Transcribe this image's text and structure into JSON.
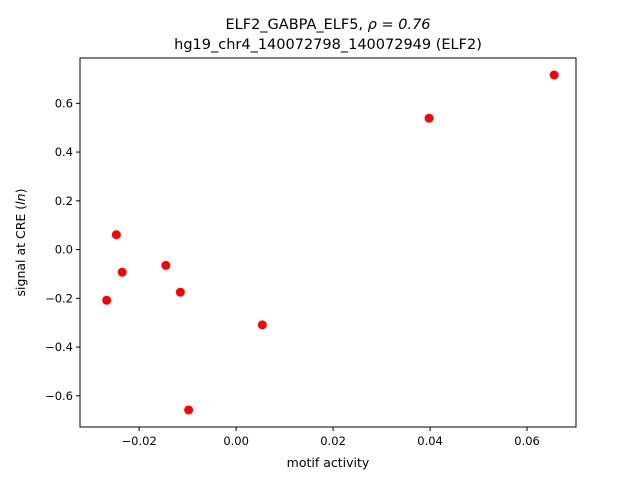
{
  "chart_data": {
    "type": "scatter",
    "title_main": "ELF2_GABPA_ELF5, ",
    "title_rho": "ρ = 0.76",
    "subtitle": "hg19_chr4_140072798_140072949 (ELF2)",
    "xlabel": "motif activity",
    "ylabel_prefix": "signal at CRE (",
    "ylabel_italic": "ln",
    "ylabel_suffix": ")",
    "xlim": [
      -0.0322,
      0.0701
    ],
    "ylim": [
      -0.728,
      0.786
    ],
    "xticks": [
      -0.02,
      0.0,
      0.02,
      0.04,
      0.06
    ],
    "xtick_labels": [
      "−0.02",
      "0.00",
      "0.02",
      "0.04",
      "0.06"
    ],
    "yticks": [
      -0.6,
      -0.4,
      -0.2,
      0.0,
      0.2,
      0.4,
      0.6
    ],
    "ytick_labels": [
      "−0.6",
      "−0.4",
      "−0.2",
      "0.0",
      "0.2",
      "0.4",
      "0.6"
    ],
    "grid": false,
    "point_color": "#ff0000",
    "points": [
      {
        "x": 0.0656,
        "y": 0.716
      },
      {
        "x": 0.0398,
        "y": 0.539
      },
      {
        "x": -0.0247,
        "y": 0.061
      },
      {
        "x": -0.0235,
        "y": -0.093
      },
      {
        "x": -0.0145,
        "y": -0.065
      },
      {
        "x": -0.0267,
        "y": -0.208
      },
      {
        "x": -0.0115,
        "y": -0.175
      },
      {
        "x": 0.0054,
        "y": -0.309
      },
      {
        "x": -0.0098,
        "y": -0.658
      }
    ]
  }
}
